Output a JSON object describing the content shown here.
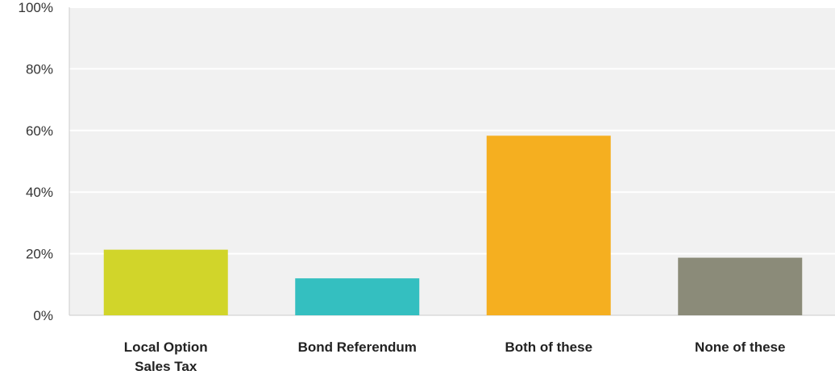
{
  "chart_data": {
    "type": "bar",
    "title": "",
    "xlabel": "",
    "ylabel": "",
    "categories": [
      [
        "Local Option",
        "Sales Tax"
      ],
      [
        "Bond Referendum"
      ],
      [
        "Both of these"
      ],
      [
        "None of these"
      ]
    ],
    "values": [
      21.3,
      12.0,
      58.3,
      18.7
    ],
    "value_unit": "%",
    "ylim": [
      0,
      100
    ],
    "yticks": [
      0,
      20,
      40,
      60,
      80,
      100
    ],
    "ytick_labels": [
      "0%",
      "20%",
      "40%",
      "60%",
      "80%",
      "100%"
    ],
    "grid": true,
    "legend": "none",
    "colors": {
      "bars": [
        "#d1d52a",
        "#34bfc0",
        "#f5af20",
        "#8b8b79"
      ],
      "plot_background": "#f1f1f1",
      "gridline": "#ffffff",
      "axis_line": "#cccccc"
    }
  }
}
